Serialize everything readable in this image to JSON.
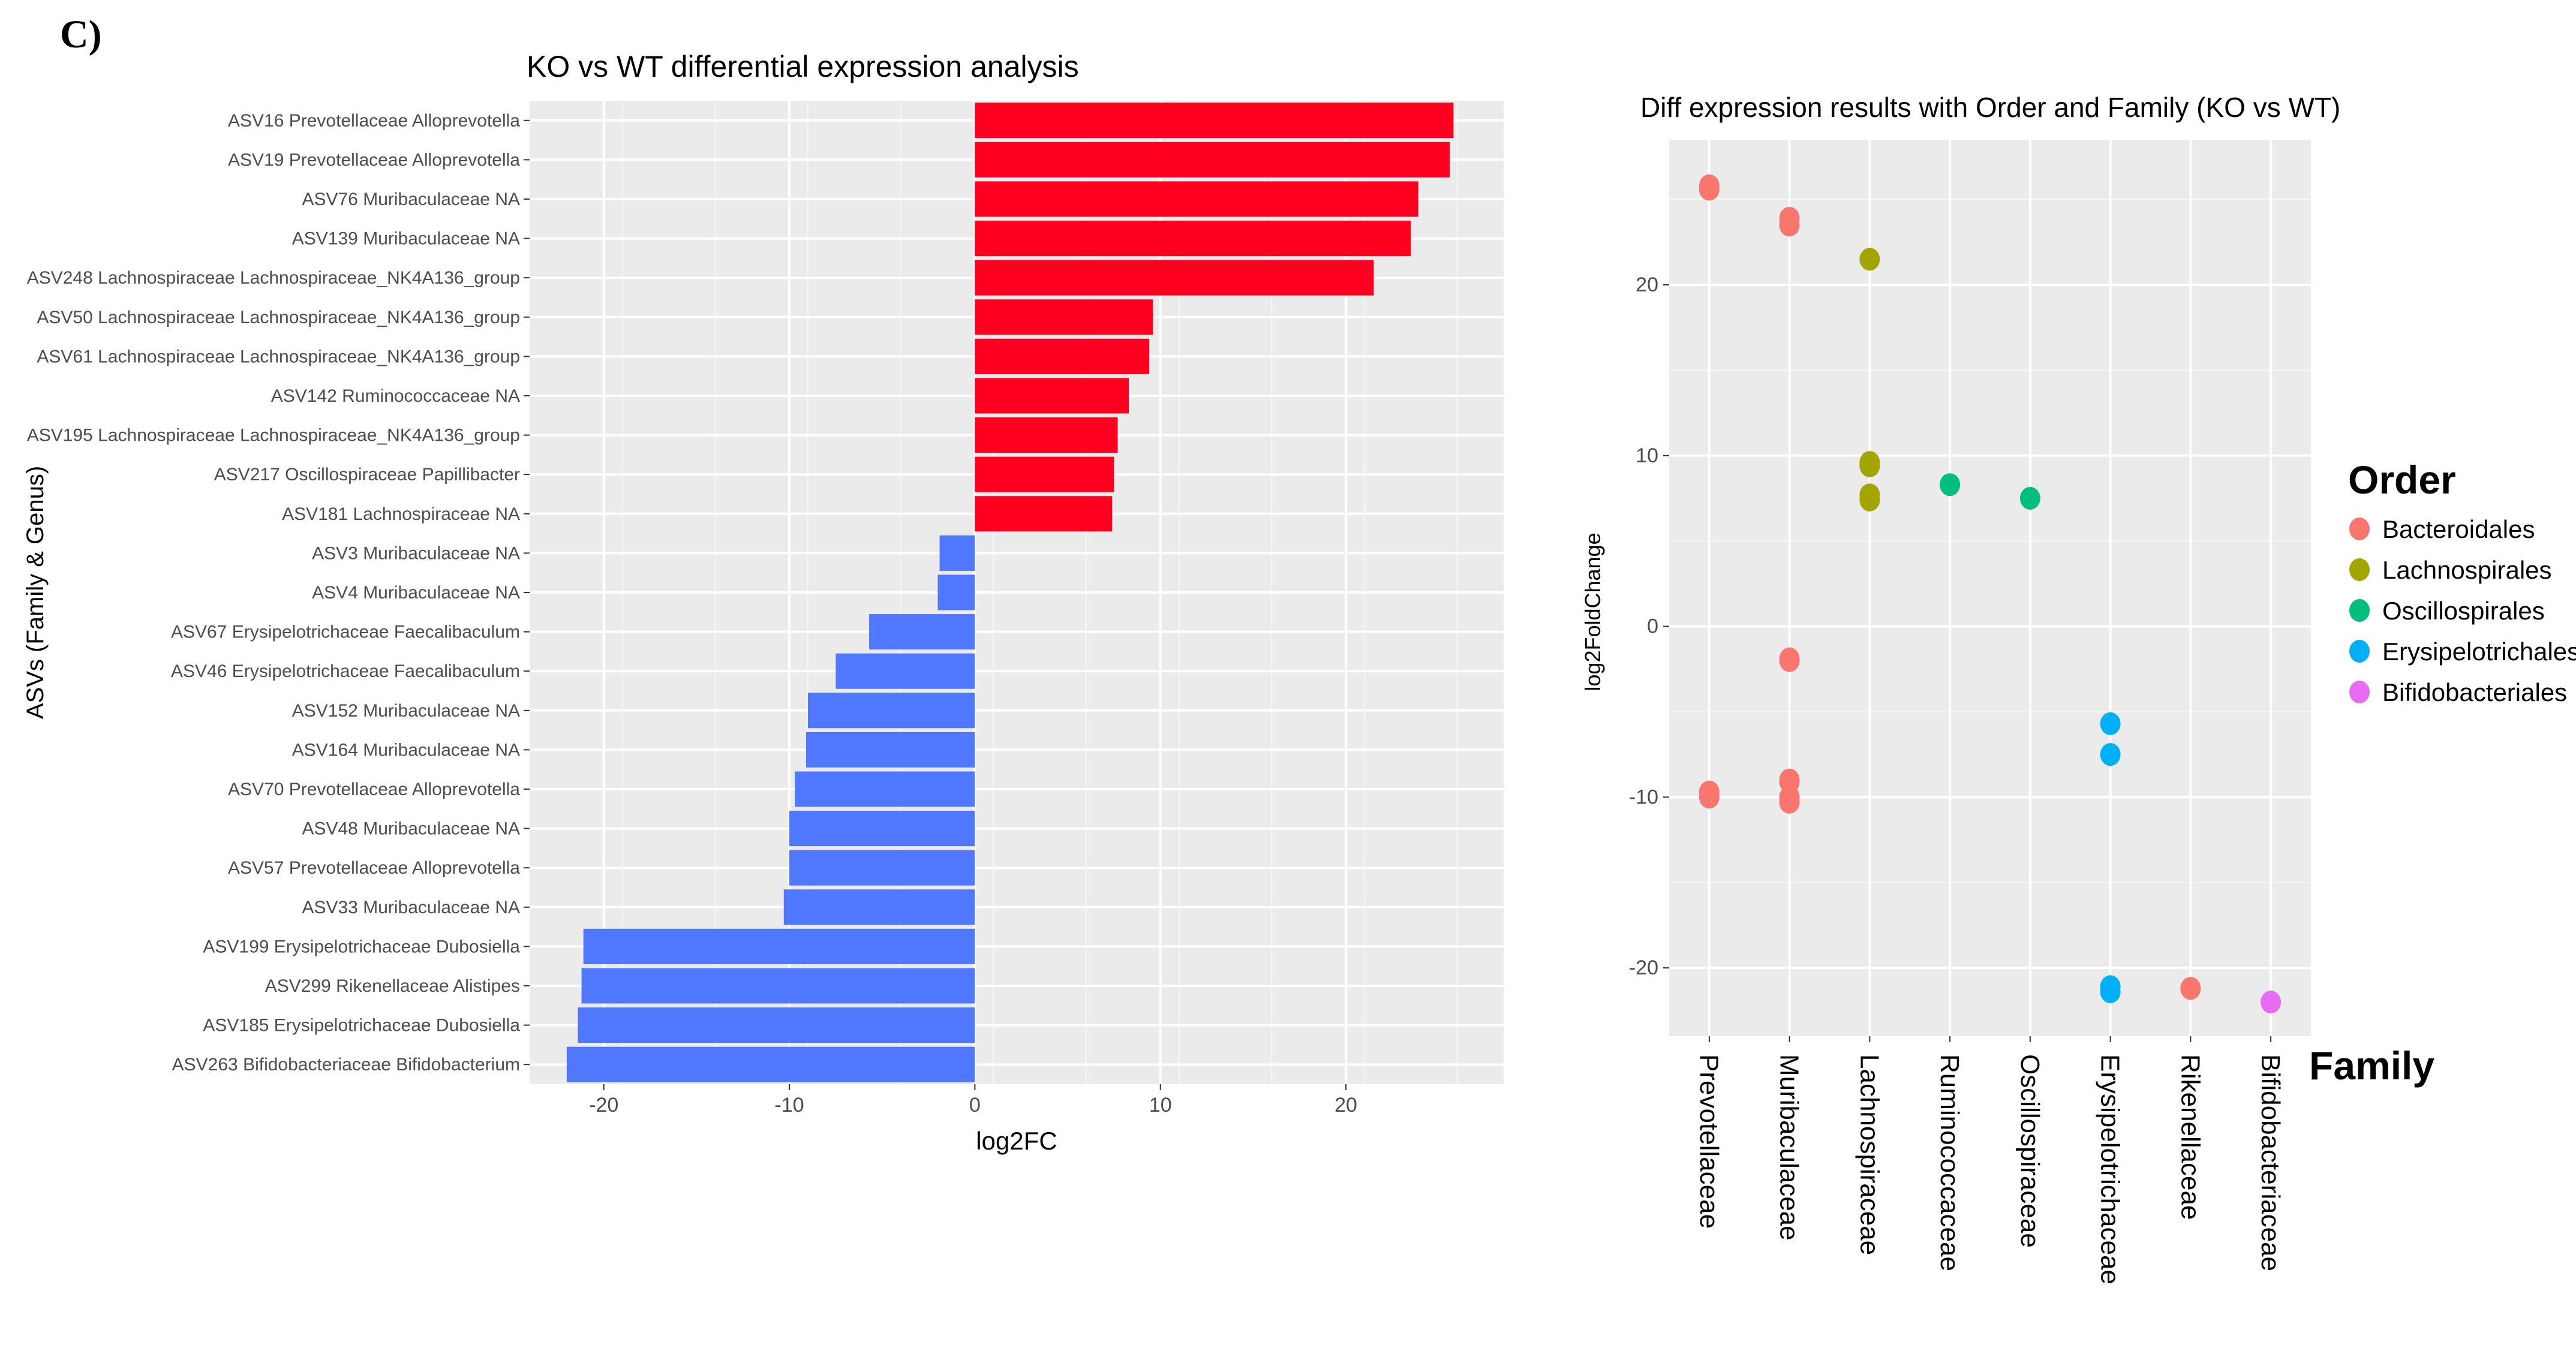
{
  "panel_label": "C)",
  "chart_data": [
    {
      "type": "bar",
      "orientation": "horizontal",
      "title": "KO vs WT differential expression analysis",
      "xlabel": "log2FC",
      "ylabel": "ASVs (Family & Genus)",
      "xlim": [
        -24,
        28.5
      ],
      "xticks": [
        -20,
        -10,
        0,
        10,
        20
      ],
      "grid": true,
      "colors": {
        "positive": "#ff0020",
        "negative": "#4f78ff",
        "panel": "#ebebeb"
      },
      "categories": [
        "ASV16 Prevotellaceae Alloprevotella",
        "ASV19 Prevotellaceae Alloprevotella",
        "ASV76 Muribaculaceae NA",
        "ASV139 Muribaculaceae NA",
        "ASV248 Lachnospiraceae Lachnospiraceae_NK4A136_group",
        "ASV50 Lachnospiraceae Lachnospiraceae_NK4A136_group",
        "ASV61 Lachnospiraceae Lachnospiraceae_NK4A136_group",
        "ASV142 Ruminococcaceae NA",
        "ASV195 Lachnospiraceae Lachnospiraceae_NK4A136_group",
        "ASV217 Oscillospiraceae Papillibacter",
        "ASV181 Lachnospiraceae NA",
        "ASV3 Muribaculaceae NA",
        "ASV4 Muribaculaceae NA",
        "ASV67 Erysipelotrichaceae Faecalibaculum",
        "ASV46 Erysipelotrichaceae Faecalibaculum",
        "ASV152 Muribaculaceae NA",
        "ASV164 Muribaculaceae NA",
        "ASV70 Prevotellaceae Alloprevotella",
        "ASV48 Muribaculaceae NA",
        "ASV57 Prevotellaceae Alloprevotella",
        "ASV33 Muribaculaceae NA",
        "ASV199 Erysipelotrichaceae Dubosiella",
        "ASV299 Rikenellaceae Alistipes",
        "ASV185 Erysipelotrichaceae Dubosiella",
        "ASV263 Bifidobacteriaceae Bifidobacterium"
      ],
      "values": [
        25.8,
        25.6,
        23.9,
        23.5,
        21.5,
        9.6,
        9.4,
        8.3,
        7.7,
        7.5,
        7.4,
        -1.9,
        -2.0,
        -5.7,
        -7.5,
        -9.0,
        -9.1,
        -9.7,
        -10.0,
        -10.0,
        -10.3,
        -21.1,
        -21.2,
        -21.4,
        -22.0
      ]
    },
    {
      "type": "scatter",
      "title": "Diff expression results with Order and Family (KO vs WT)",
      "xlabel": "Family",
      "ylabel": "log2FoldChange",
      "ylim": [
        -24,
        28.5
      ],
      "yticks": [
        -20,
        -10,
        0,
        10,
        20
      ],
      "grid": true,
      "categories": [
        "Prevotellaceae",
        "Muribaculaceae",
        "Lachnospiraceae",
        "Ruminococcaceae",
        "Oscillospiraceae",
        "Erysipelotrichaceae",
        "Rikenellaceae",
        "Bifidobacteriaceae"
      ],
      "legend": {
        "title": "Order",
        "placement": "right",
        "items": [
          {
            "name": "Bacteroidales",
            "color": "#f8766d"
          },
          {
            "name": "Lachnospirales",
            "color": "#a3a500"
          },
          {
            "name": "Oscillospirales",
            "color": "#00bf7d"
          },
          {
            "name": "Erysipelotrichales",
            "color": "#00b0f6"
          },
          {
            "name": "Bifidobacteriales",
            "color": "#e76bf3"
          }
        ]
      },
      "points": [
        {
          "family": "Prevotellaceae",
          "y": 25.8,
          "order": "Bacteroidales"
        },
        {
          "family": "Prevotellaceae",
          "y": 25.6,
          "order": "Bacteroidales"
        },
        {
          "family": "Prevotellaceae",
          "y": -9.7,
          "order": "Bacteroidales"
        },
        {
          "family": "Prevotellaceae",
          "y": -10.0,
          "order": "Bacteroidales"
        },
        {
          "family": "Muribaculaceae",
          "y": 23.9,
          "order": "Bacteroidales"
        },
        {
          "family": "Muribaculaceae",
          "y": 23.5,
          "order": "Bacteroidales"
        },
        {
          "family": "Muribaculaceae",
          "y": -1.9,
          "order": "Bacteroidales"
        },
        {
          "family": "Muribaculaceae",
          "y": -2.0,
          "order": "Bacteroidales"
        },
        {
          "family": "Muribaculaceae",
          "y": -9.0,
          "order": "Bacteroidales"
        },
        {
          "family": "Muribaculaceae",
          "y": -9.1,
          "order": "Bacteroidales"
        },
        {
          "family": "Muribaculaceae",
          "y": -10.0,
          "order": "Bacteroidales"
        },
        {
          "family": "Muribaculaceae",
          "y": -10.3,
          "order": "Bacteroidales"
        },
        {
          "family": "Lachnospiraceae",
          "y": 21.5,
          "order": "Lachnospirales"
        },
        {
          "family": "Lachnospiraceae",
          "y": 9.6,
          "order": "Lachnospirales"
        },
        {
          "family": "Lachnospiraceae",
          "y": 9.4,
          "order": "Lachnospirales"
        },
        {
          "family": "Lachnospiraceae",
          "y": 7.7,
          "order": "Lachnospirales"
        },
        {
          "family": "Lachnospiraceae",
          "y": 7.4,
          "order": "Lachnospirales"
        },
        {
          "family": "Ruminococcaceae",
          "y": 8.3,
          "order": "Oscillospirales"
        },
        {
          "family": "Oscillospiraceae",
          "y": 7.5,
          "order": "Oscillospirales"
        },
        {
          "family": "Erysipelotrichaceae",
          "y": -5.7,
          "order": "Erysipelotrichales"
        },
        {
          "family": "Erysipelotrichaceae",
          "y": -7.5,
          "order": "Erysipelotrichales"
        },
        {
          "family": "Erysipelotrichaceae",
          "y": -21.1,
          "order": "Erysipelotrichales"
        },
        {
          "family": "Erysipelotrichaceae",
          "y": -21.4,
          "order": "Erysipelotrichales"
        },
        {
          "family": "Rikenellaceae",
          "y": -21.2,
          "order": "Bacteroidales"
        },
        {
          "family": "Bifidobacteriaceae",
          "y": -22.0,
          "order": "Bifidobacteriales"
        }
      ]
    }
  ]
}
